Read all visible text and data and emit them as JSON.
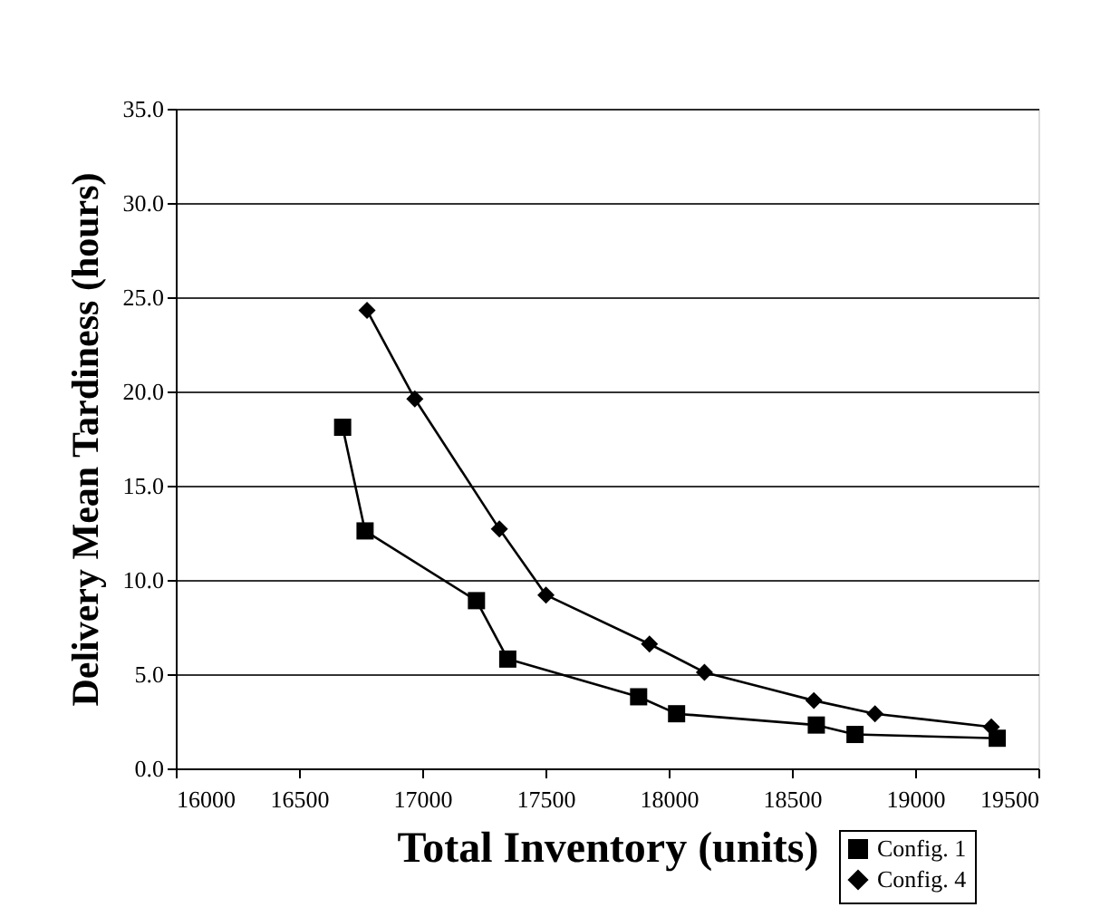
{
  "chart_data": {
    "type": "line",
    "xlabel": "Total Inventory (units)",
    "ylabel": "Delivery Mean Tardiness (hours)",
    "xlim": [
      16000,
      19500
    ],
    "xticks": [
      16000,
      16500,
      17000,
      17500,
      18000,
      18500,
      19000,
      19500
    ],
    "ylim": [
      0,
      35
    ],
    "yticks": [
      {
        "value": 0,
        "label": "0.0"
      },
      {
        "value": 5,
        "label": "5.0"
      },
      {
        "value": 10,
        "label": "10.0"
      },
      {
        "value": 15,
        "label": "15.0"
      },
      {
        "value": 20,
        "label": "20.0"
      },
      {
        "value": 25,
        "label": "25.0"
      },
      {
        "value": 30,
        "label": "30.0"
      },
      {
        "value": 35,
        "label": "35.0"
      }
    ],
    "grid": "y",
    "legend": "bottom right",
    "line_style": "solid",
    "series": [
      {
        "name": "Config. 1",
        "color": "#000000",
        "marker": "square",
        "x": [
          16677,
          16768,
          17220,
          17347,
          17878,
          18032,
          18599,
          18756,
          19333
        ],
        "values": [
          18.1,
          12.6,
          8.9,
          5.8,
          3.8,
          2.9,
          2.3,
          1.8,
          1.6
        ]
      },
      {
        "name": "Config. 4",
        "color": "#000000",
        "marker": "diamond",
        "x": [
          16776,
          16970,
          17313,
          17502,
          17922,
          18145,
          18589,
          18837,
          19309
        ],
        "values": [
          24.3,
          19.6,
          12.7,
          9.2,
          6.6,
          5.1,
          3.6,
          2.9,
          2.2
        ]
      }
    ]
  }
}
